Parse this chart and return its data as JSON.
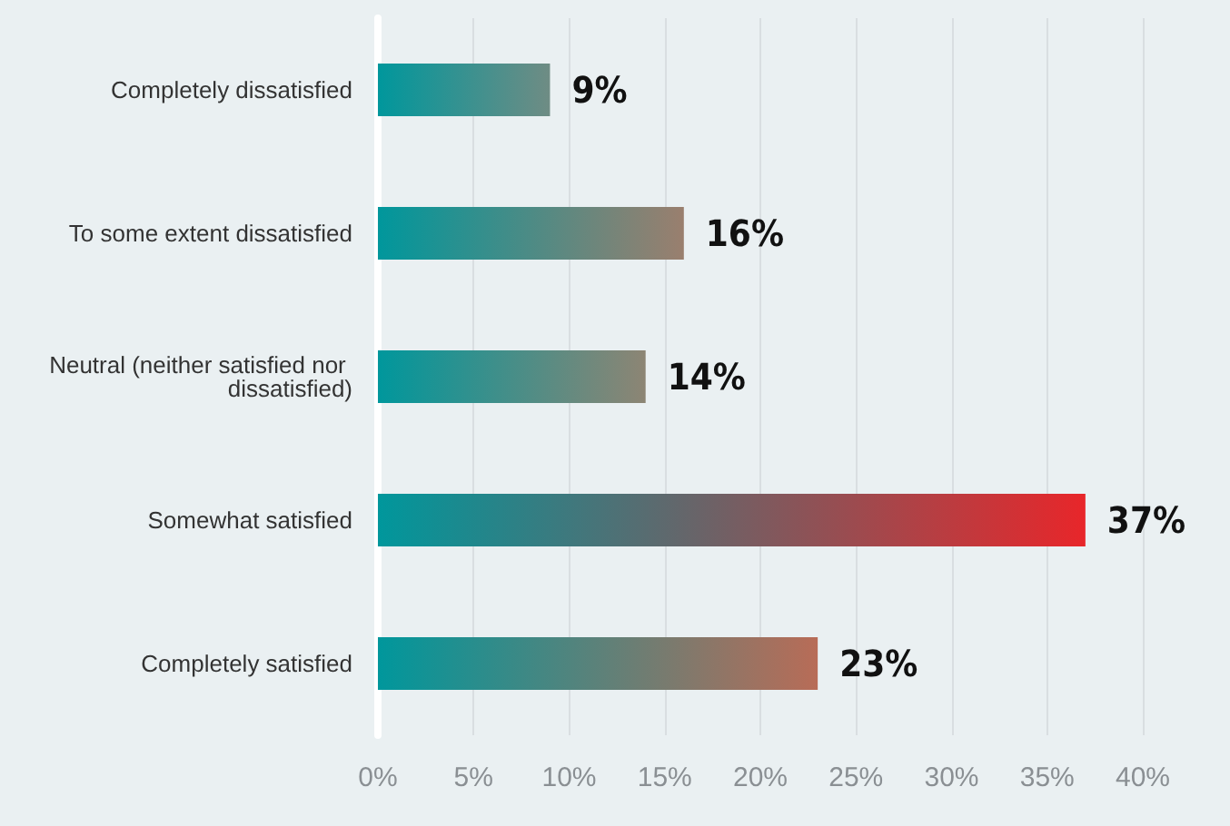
{
  "chart_data": {
    "type": "bar",
    "orientation": "horizontal",
    "categories": [
      "Completely dissatisfied",
      "To some extent dissatisfied",
      "Neutral (neither satisfied nor dissatisfied)",
      "Somewhat satisfied",
      "Completely satisfied"
    ],
    "values": [
      9,
      16,
      14,
      37,
      23
    ],
    "colors": [
      "#6f8c84",
      "#9a7f6e",
      "#8d8574",
      "#e8262a",
      "#b86c57"
    ],
    "value_labels": [
      "9%",
      "16%",
      "14%",
      "37%",
      "23%"
    ],
    "xlim": [
      0,
      40
    ],
    "xticks": [
      {
        "value": 0,
        "label": "0%"
      },
      {
        "value": 5,
        "label": "5%"
      },
      {
        "value": 10,
        "label": "10%"
      },
      {
        "value": 15,
        "label": "15%"
      },
      {
        "value": 20,
        "label": "20%"
      },
      {
        "value": 25,
        "label": "25%"
      },
      {
        "value": 30,
        "label": "30%"
      },
      {
        "value": 35,
        "label": "35%"
      },
      {
        "value": 40,
        "label": "40%"
      }
    ],
    "grid": "x"
  }
}
